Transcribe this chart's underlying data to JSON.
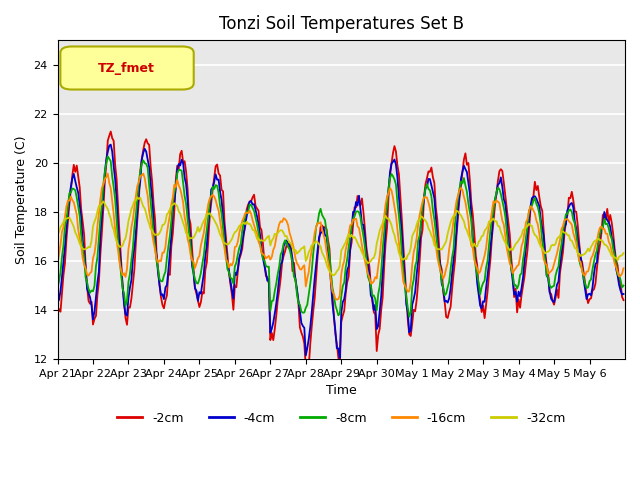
{
  "title": "Tonzi Soil Temperatures Set B",
  "xlabel": "Time",
  "ylabel": "Soil Temperature (C)",
  "legend_label": "TZ_fmet",
  "series_labels": [
    "-2cm",
    "-4cm",
    "-8cm",
    "-16cm",
    "-32cm"
  ],
  "series_colors": [
    "#dd0000",
    "#0000cc",
    "#00aa00",
    "#ff8800",
    "#cccc00"
  ],
  "ylim": [
    12,
    25
  ],
  "yticks": [
    12,
    14,
    16,
    18,
    20,
    22,
    24
  ],
  "xtick_labels": [
    "Apr 21",
    "Apr 22",
    "Apr 23",
    "Apr 24",
    "Apr 25",
    "Apr 26",
    "Apr 27",
    "Apr 28",
    "Apr 29",
    "Apr 30",
    "May 1",
    "May 2",
    "May 3",
    "May 4",
    "May 5",
    "May 6"
  ],
  "plot_bg_color": "#e8e8e8",
  "legend_box_facecolor": "#ffff99",
  "legend_box_edgecolor": "#aaaa00",
  "legend_text_color": "#cc0000",
  "fig_bg_color": "#ffffff",
  "grid_color": "#ffffff",
  "line_width": 1.3
}
